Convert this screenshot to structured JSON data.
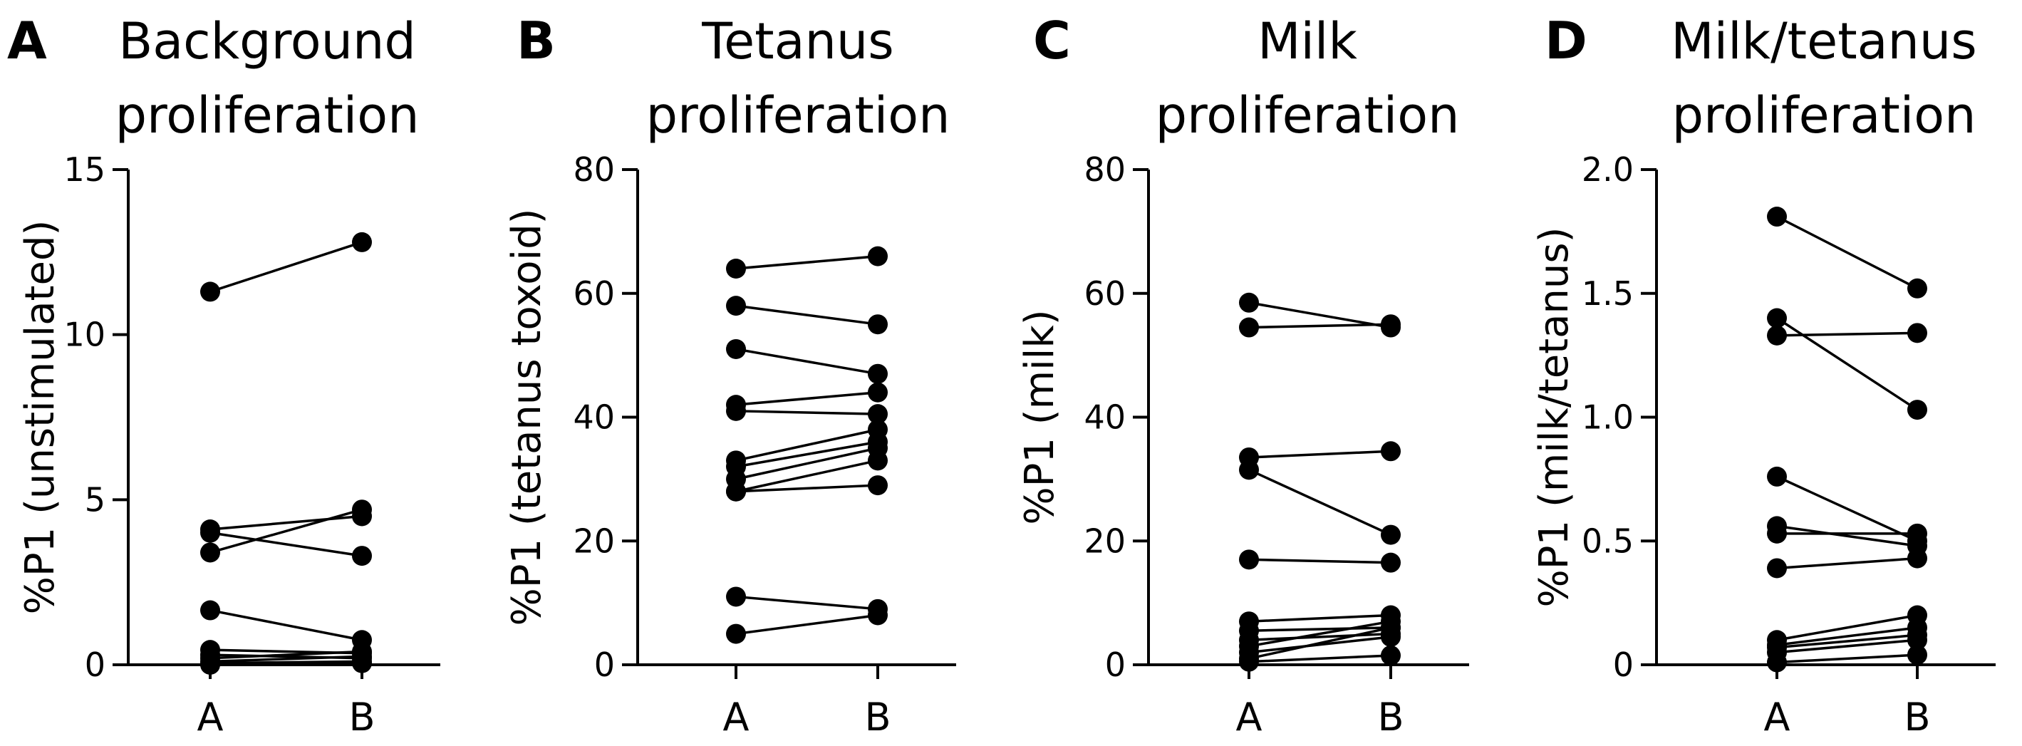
{
  "chart_data": [
    {
      "type": "line",
      "panel": "A",
      "title": [
        "Background",
        "proliferation"
      ],
      "ylabel": "%P1 (unstimulated)",
      "categories": [
        "A",
        "B"
      ],
      "ylim": [
        0,
        15
      ],
      "yticks": [
        0,
        5,
        10,
        15
      ],
      "ytick_labels": [
        "0",
        "5",
        "10",
        "15"
      ],
      "pairs": [
        [
          11.3,
          12.8
        ],
        [
          4.0,
          3.3
        ],
        [
          3.4,
          4.7
        ],
        [
          4.1,
          4.5
        ],
        [
          1.65,
          0.75
        ],
        [
          0.45,
          0.35
        ],
        [
          0.3,
          0.2
        ],
        [
          0.2,
          0.4
        ],
        [
          0.1,
          0.25
        ],
        [
          0.05,
          0.1
        ],
        [
          0.0,
          0.05
        ]
      ]
    },
    {
      "type": "line",
      "panel": "B",
      "title": [
        "Tetanus",
        "proliferation"
      ],
      "ylabel": "%P1 (tetanus toxoid)",
      "categories": [
        "A",
        "B"
      ],
      "ylim": [
        0,
        80
      ],
      "yticks": [
        0,
        20,
        40,
        60,
        80
      ],
      "ytick_labels": [
        "0",
        "20",
        "40",
        "60",
        "80"
      ],
      "pairs": [
        [
          64,
          66
        ],
        [
          58,
          55
        ],
        [
          51,
          47
        ],
        [
          42,
          44
        ],
        [
          41,
          40.5
        ],
        [
          33,
          38
        ],
        [
          32,
          36
        ],
        [
          30,
          35
        ],
        [
          28,
          33
        ],
        [
          28,
          29
        ],
        [
          11,
          9
        ],
        [
          5,
          8
        ]
      ]
    },
    {
      "type": "line",
      "panel": "C",
      "title": [
        "Milk",
        "proliferation"
      ],
      "ylabel": "%P1 (milk)",
      "categories": [
        "A",
        "B"
      ],
      "ylim": [
        0,
        80
      ],
      "yticks": [
        0,
        20,
        40,
        60,
        80
      ],
      "ytick_labels": [
        "0",
        "20",
        "40",
        "60",
        "80"
      ],
      "pairs": [
        [
          58.5,
          54.5
        ],
        [
          54.5,
          55
        ],
        [
          33.5,
          34.5
        ],
        [
          31.5,
          21
        ],
        [
          17,
          16.5
        ],
        [
          7,
          8
        ],
        [
          5.5,
          6
        ],
        [
          4,
          5
        ],
        [
          3,
          7
        ],
        [
          2,
          4.5
        ],
        [
          1,
          6
        ],
        [
          0.5,
          1.5
        ]
      ]
    },
    {
      "type": "line",
      "panel": "D",
      "title": [
        "Milk/tetanus",
        "proliferation"
      ],
      "ylabel": "%P1 (milk/tetanus)",
      "categories": [
        "A",
        "B"
      ],
      "ylim": [
        0,
        2.0
      ],
      "yticks": [
        0,
        0.5,
        1.0,
        1.5,
        2.0
      ],
      "ytick_labels": [
        "0",
        "0.5",
        "1.0",
        "1.5",
        "2.0"
      ],
      "pairs": [
        [
          1.81,
          1.52
        ],
        [
          1.4,
          1.03
        ],
        [
          1.33,
          1.34
        ],
        [
          0.76,
          0.5
        ],
        [
          0.56,
          0.48
        ],
        [
          0.53,
          0.53
        ],
        [
          0.39,
          0.43
        ],
        [
          0.1,
          0.2
        ],
        [
          0.08,
          0.15
        ],
        [
          0.07,
          0.12
        ],
        [
          0.05,
          0.1
        ],
        [
          0.01,
          0.04
        ]
      ]
    }
  ]
}
